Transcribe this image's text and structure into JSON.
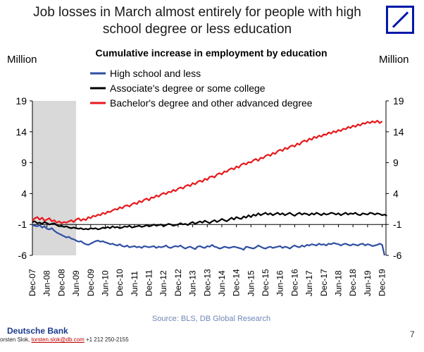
{
  "header": {
    "title": "Job losses in March almost entirely for people with high school degree or less education"
  },
  "logo": {
    "name": "deutsche-bank-logo"
  },
  "footer": {
    "source": "Source: BLS, DB Global Research",
    "brand": "Deutsche Bank",
    "contact_prefix": "orsten Slok, ",
    "contact_email": "torsten.slok@db.com",
    "contact_phone": " +1 212 250-2155",
    "page_number": "7"
  },
  "colors": {
    "high_school": "#2f4fa3",
    "associate": "#000000",
    "bachelor": "#e8181c",
    "recession_shade": "#d9d9d9",
    "brand_blue": "#0018a8"
  },
  "chart_data": {
    "type": "line",
    "title": "Cumulative increase in employment by education",
    "ylabel_left": "Million",
    "ylabel_right": "Million",
    "ylim": [
      -6,
      19
    ],
    "yticks": [
      -6,
      -1,
      4,
      9,
      14,
      19
    ],
    "x_ticks": [
      "Dec-07",
      "Jun-08",
      "Dec-08",
      "Jun-09",
      "Dec-09",
      "Jun-10",
      "Dec-10",
      "Jun-11",
      "Dec-11",
      "Jun-12",
      "Dec-12",
      "Jun-13",
      "Dec-13",
      "Jun-14",
      "Dec-14",
      "Jun-15",
      "Dec-15",
      "Jun-16",
      "Dec-16",
      "Jun-17",
      "Dec-17",
      "Jun-18",
      "Dec-18",
      "Jun-19",
      "Dec-19"
    ],
    "x_range": [
      "Dec-07",
      "Mar-20"
    ],
    "recession": {
      "start": "Dec-07",
      "end": "Jun-09"
    },
    "legend_position": "top-center",
    "series": [
      {
        "name": "High school and less",
        "color": "#2f4fa3",
        "values": [
          -1.1,
          -1.2,
          -1.3,
          -1.1,
          -1.5,
          -1.3,
          -1.7,
          -1.8,
          -1.6,
          -2.0,
          -2.3,
          -2.5,
          -2.7,
          -2.9,
          -3.1,
          -3.0,
          -3.3,
          -3.4,
          -3.6,
          -3.8,
          -3.7,
          -4.0,
          -4.2,
          -4.3,
          -4.1,
          -3.9,
          -3.7,
          -3.6,
          -3.8,
          -3.7,
          -3.9,
          -4.0,
          -4.2,
          -4.1,
          -4.3,
          -4.4,
          -4.2,
          -4.5,
          -4.6,
          -4.4,
          -4.7,
          -4.6,
          -4.5,
          -4.7,
          -4.6,
          -4.8,
          -4.5,
          -4.6,
          -4.7,
          -4.6,
          -4.5,
          -4.8,
          -4.6,
          -4.7,
          -4.6,
          -4.4,
          -4.7,
          -4.8,
          -4.6,
          -4.5,
          -4.6,
          -4.4,
          -4.7,
          -4.9,
          -4.7,
          -4.6,
          -4.8,
          -5.0,
          -4.6,
          -4.5,
          -4.7,
          -4.8,
          -4.5,
          -4.6,
          -4.3,
          -4.6,
          -4.7,
          -4.9,
          -4.8,
          -4.6,
          -4.7,
          -4.8,
          -4.7,
          -4.6,
          -4.7,
          -4.8,
          -4.9,
          -5.1,
          -4.6,
          -4.7,
          -4.8,
          -4.9,
          -4.7,
          -4.4,
          -4.6,
          -4.8,
          -4.9,
          -4.7,
          -4.6,
          -4.8,
          -4.7,
          -4.6,
          -4.5,
          -4.8,
          -4.6,
          -4.7,
          -4.9,
          -4.6,
          -4.4,
          -4.6,
          -4.7,
          -4.4,
          -4.6,
          -4.3,
          -4.4,
          -4.2,
          -4.3,
          -4.4,
          -4.1,
          -4.3,
          -4.2,
          -4.4,
          -4.1,
          -4.2,
          -4.0,
          -4.1,
          -4.2,
          -4.4,
          -4.2,
          -4.1,
          -4.3,
          -4.4,
          -4.2,
          -4.3,
          -4.4,
          -4.2,
          -4.1,
          -4.4,
          -4.2,
          -4.3,
          -4.5,
          -4.4,
          -4.3,
          -4.1,
          -4.3,
          -6.0
        ]
      },
      {
        "name": "Associate's degree or some college",
        "color": "#000000",
        "values": [
          -0.6,
          -0.5,
          -0.8,
          -0.7,
          -0.9,
          -0.6,
          -0.8,
          -1.0,
          -0.9,
          -0.8,
          -1.1,
          -1.3,
          -1.2,
          -1.4,
          -1.3,
          -1.5,
          -1.6,
          -1.5,
          -1.6,
          -1.7,
          -1.6,
          -1.8,
          -1.7,
          -1.8,
          -1.6,
          -1.7,
          -1.6,
          -1.8,
          -1.7,
          -1.5,
          -1.6,
          -1.4,
          -1.6,
          -1.3,
          -1.5,
          -1.4,
          -1.6,
          -1.5,
          -1.3,
          -1.4,
          -1.2,
          -1.5,
          -1.4,
          -1.3,
          -1.2,
          -1.4,
          -1.3,
          -1.1,
          -1.3,
          -1.2,
          -1.0,
          -1.2,
          -1.1,
          -1.0,
          -1.3,
          -1.1,
          -0.9,
          -1.0,
          -1.2,
          -1.1,
          -1.0,
          -0.8,
          -1.0,
          -0.9,
          -1.1,
          -0.8,
          -0.6,
          -0.9,
          -0.7,
          -0.5,
          -0.7,
          -0.4,
          -0.6,
          -0.8,
          -0.5,
          -0.3,
          -0.6,
          -0.4,
          -0.1,
          -0.3,
          -0.5,
          -0.2,
          0.1,
          -0.2,
          0.2,
          0.0,
          -0.1,
          0.3,
          0.1,
          0.5,
          0.2,
          0.6,
          0.4,
          0.8,
          0.5,
          0.7,
          0.9,
          0.6,
          0.8,
          0.5,
          0.7,
          0.9,
          0.6,
          0.8,
          0.5,
          0.7,
          0.9,
          0.6,
          0.4,
          0.7,
          0.9,
          0.6,
          0.8,
          0.7,
          0.5,
          0.8,
          0.6,
          0.9,
          0.7,
          0.5,
          0.8,
          0.6,
          0.7,
          0.9,
          0.8,
          0.6,
          0.8,
          0.5,
          0.7,
          0.9,
          0.6,
          0.8,
          0.7,
          0.9,
          0.6,
          0.5,
          0.8,
          0.7,
          0.6,
          0.9,
          0.8,
          0.6,
          0.8,
          0.7,
          0.5,
          0.6,
          0.4
        ]
      },
      {
        "name": "Bachelor's degree and other advanced degree",
        "color": "#e8181c",
        "values": [
          -0.4,
          0.0,
          0.2,
          -0.2,
          0.1,
          -0.4,
          -0.2,
          0.0,
          -0.5,
          -0.3,
          -0.7,
          -0.5,
          -0.8,
          -0.6,
          -0.7,
          -0.5,
          -0.3,
          -0.6,
          -0.2,
          0.0,
          -0.4,
          -0.1,
          -0.3,
          0.2,
          0.0,
          0.4,
          0.3,
          0.6,
          0.5,
          0.9,
          0.7,
          1.1,
          1.0,
          1.3,
          1.5,
          1.4,
          1.8,
          1.6,
          2.0,
          2.1,
          1.9,
          2.3,
          2.5,
          2.3,
          2.8,
          2.6,
          3.0,
          3.2,
          2.9,
          3.4,
          3.3,
          3.7,
          3.5,
          3.9,
          4.1,
          3.9,
          4.3,
          4.2,
          4.6,
          4.4,
          4.8,
          5.0,
          4.8,
          5.2,
          5.4,
          5.2,
          5.7,
          5.5,
          5.9,
          6.1,
          5.9,
          6.4,
          6.2,
          6.7,
          6.8,
          6.6,
          7.1,
          7.3,
          7.1,
          7.6,
          7.5,
          7.9,
          8.1,
          7.9,
          8.4,
          8.2,
          8.7,
          8.9,
          8.7,
          9.1,
          9.0,
          9.4,
          9.6,
          9.3,
          9.8,
          9.7,
          10.1,
          10.3,
          10.1,
          10.6,
          10.4,
          10.9,
          11.1,
          10.9,
          11.4,
          11.2,
          11.6,
          11.8,
          11.6,
          12.1,
          11.9,
          12.4,
          12.6,
          12.4,
          12.9,
          12.7,
          13.2,
          13.0,
          13.4,
          13.2,
          13.6,
          13.5,
          13.9,
          13.7,
          14.1,
          13.9,
          14.3,
          14.1,
          14.5,
          14.4,
          14.8,
          14.6,
          15.0,
          14.8,
          15.2,
          15.0,
          15.4,
          15.3,
          15.6,
          15.4,
          15.7,
          15.5,
          15.8,
          15.4,
          15.7
        ]
      }
    ]
  }
}
